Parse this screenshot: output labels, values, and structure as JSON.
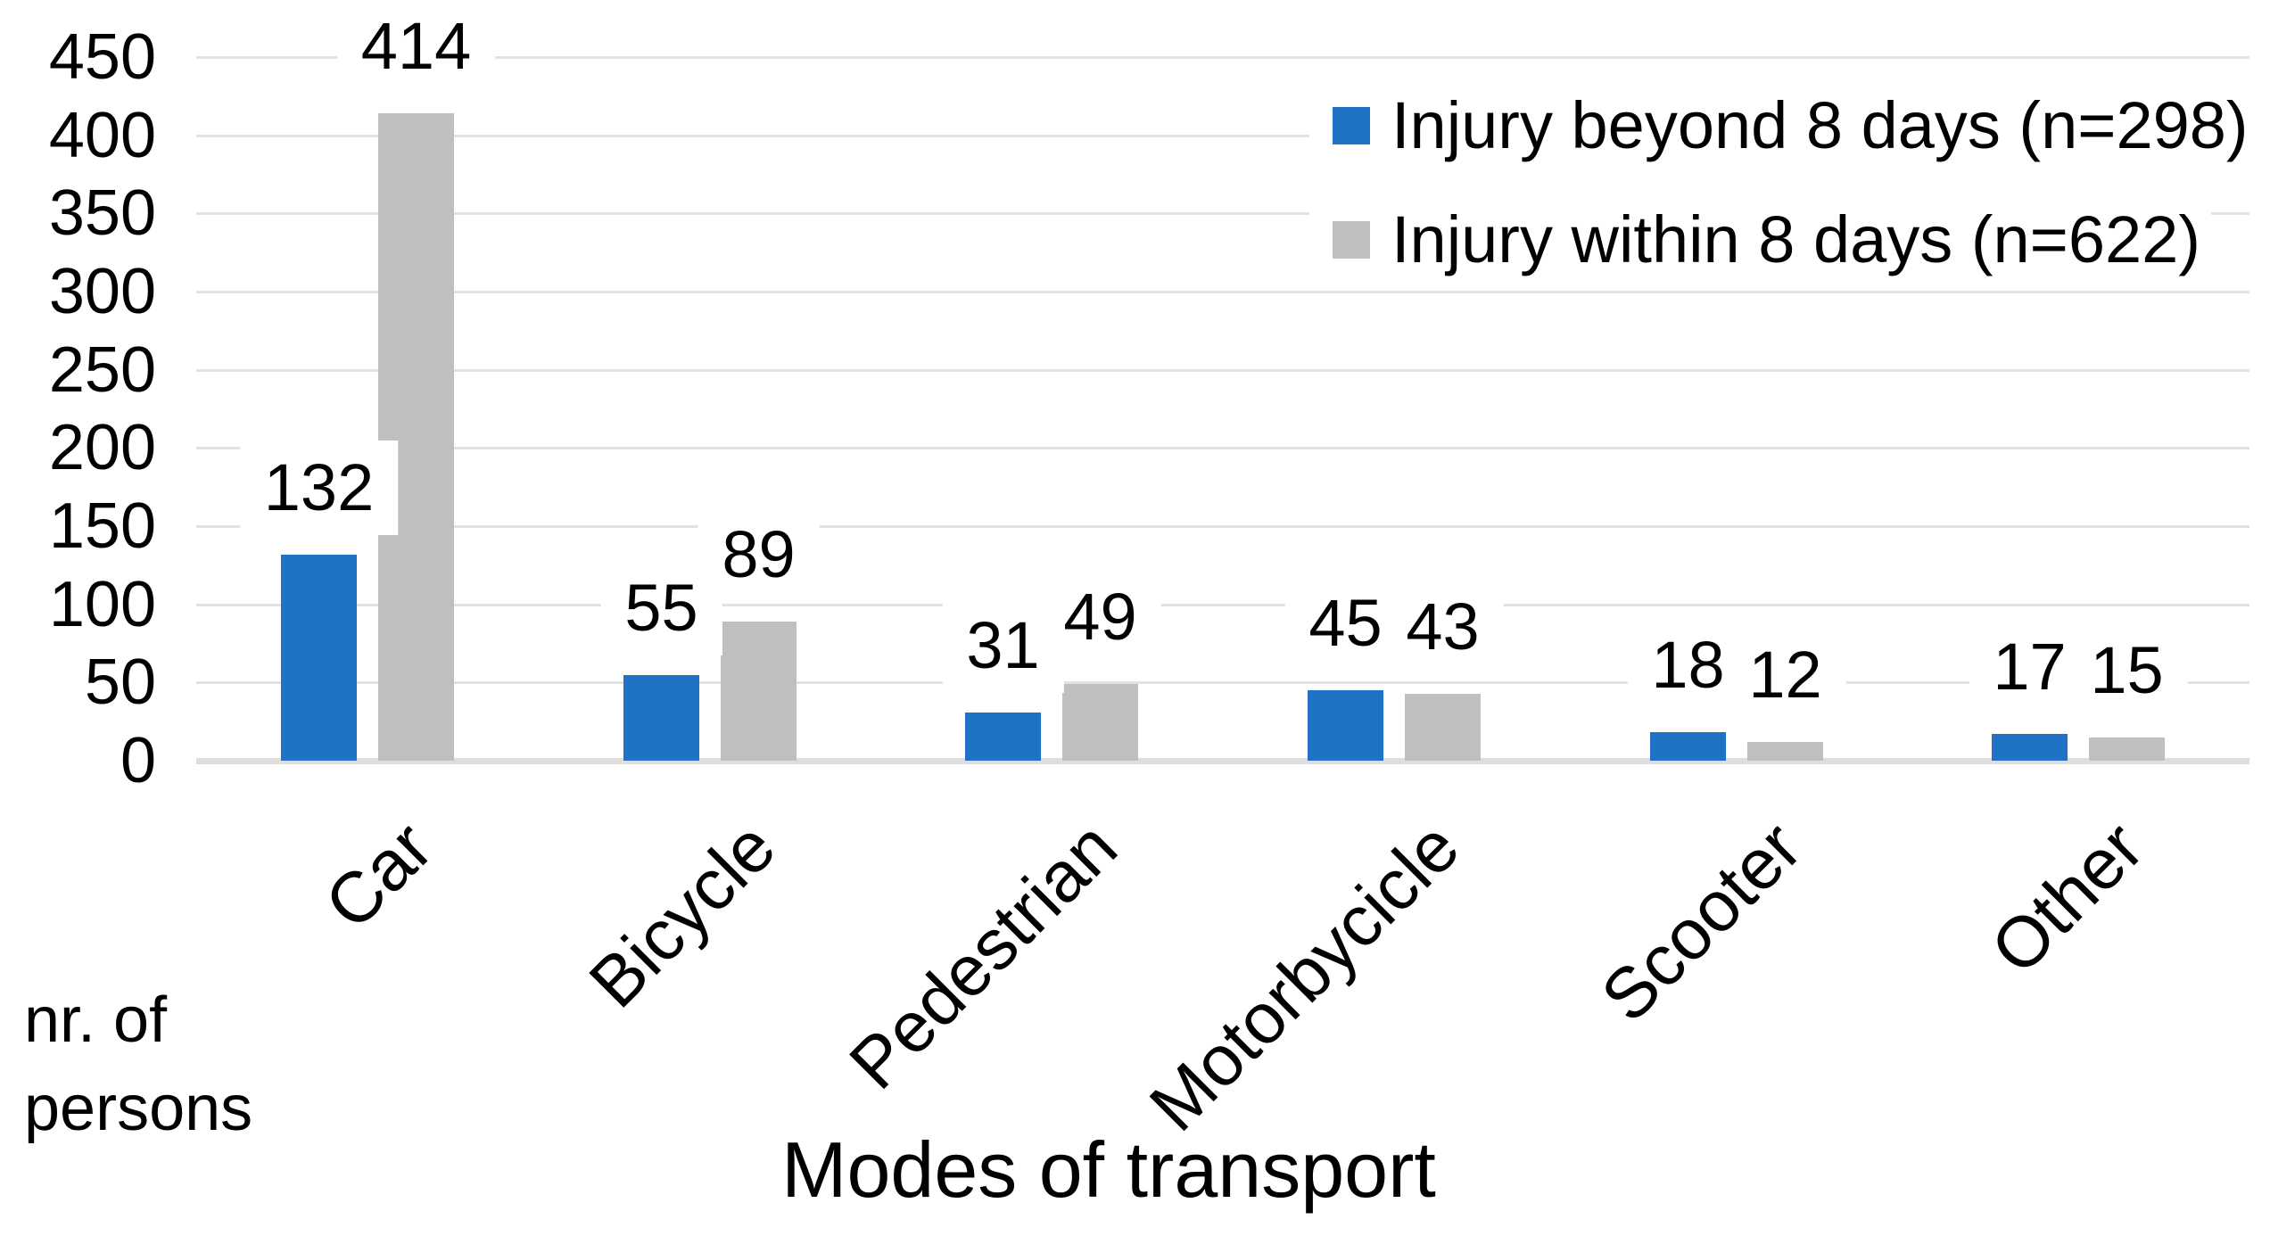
{
  "chart_data": {
    "type": "bar",
    "title": "",
    "categories": [
      "Car",
      "Bicycle",
      "Pedestrian",
      "Motorbycicle",
      "Scooter",
      "Other"
    ],
    "series": [
      {
        "name": "Injury beyond 8 days (n=298)",
        "color": "#1F72C6",
        "values": [
          132,
          55,
          31,
          45,
          18,
          17
        ]
      },
      {
        "name": "Injury within 8 days (n=622)",
        "color": "#BFBFBF",
        "values": [
          414,
          89,
          49,
          43,
          12,
          15
        ]
      }
    ],
    "xlabel": "Modes of transport",
    "ylabel": "nr. of persons",
    "ylim": [
      0,
      450
    ],
    "y_ticks": [
      0,
      50,
      100,
      150,
      200,
      250,
      300,
      350,
      400,
      450
    ],
    "grid": "horizontal",
    "gridline_color": "#E2E2E2",
    "baseline_color": "#DEDEDE",
    "data_labels": true,
    "data_label_background": "#FFFFFF",
    "legend_position": "top-right",
    "text_color": "#000000"
  }
}
